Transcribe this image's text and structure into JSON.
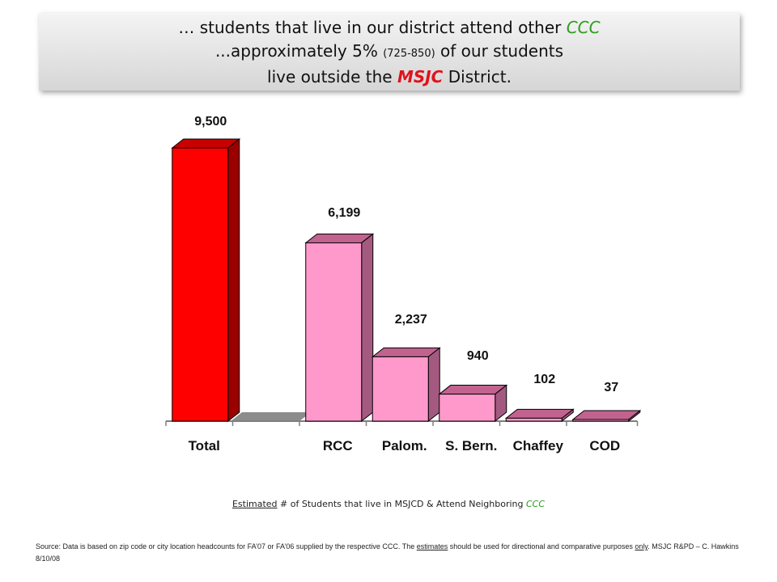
{
  "banner": {
    "line1_prefix": "… students that live in our district attend other ",
    "line1_ccc": "CCC",
    "line2_prefix": "...approximately 5% ",
    "line2_small": "(725-850)",
    "line2_suffix": " of our students",
    "line3_prefix": "live outside the ",
    "line3_msjc": "MSJC",
    "line3_suffix": " District."
  },
  "caption": {
    "estimated": "Estimated",
    "middle": " # of Students that live in MSJCD & Attend Neighboring ",
    "ccc": "CCC"
  },
  "source": {
    "part1": "Source: Data is based on zip code or city location headcounts for FA’07 or FA’06 supplied by the respective CCC. The ",
    "estimates": "estimates",
    "part2": " should be used for directional and comparative purposes ",
    "only": "only",
    "part3": ". MSJC R&PD – C. Hawkins 8/10/08"
  },
  "colors": {
    "total_front": "#ff0000",
    "total_top": "#c80000",
    "total_side": "#9a0000",
    "other_front": "#ff99cc",
    "other_top": "#c2628f",
    "other_side": "#a45a80",
    "ccc_text": "#2e9e1e",
    "msjc_text": "#e0121c"
  },
  "chart_data": {
    "type": "bar",
    "categories": [
      "Total",
      "RCC",
      "Palom.",
      "S. Bern.",
      "Chaffey",
      "COD"
    ],
    "values": [
      9500,
      6199,
      2237,
      940,
      102,
      37
    ],
    "data_labels": [
      "9,500",
      "6,199",
      "2,237",
      "940",
      "102",
      "37"
    ],
    "highlight_category": "Total",
    "title": "",
    "xlabel": "",
    "ylabel": "",
    "ylim": [
      0,
      9500
    ],
    "grid": false,
    "legend": "none",
    "style": "3d"
  }
}
